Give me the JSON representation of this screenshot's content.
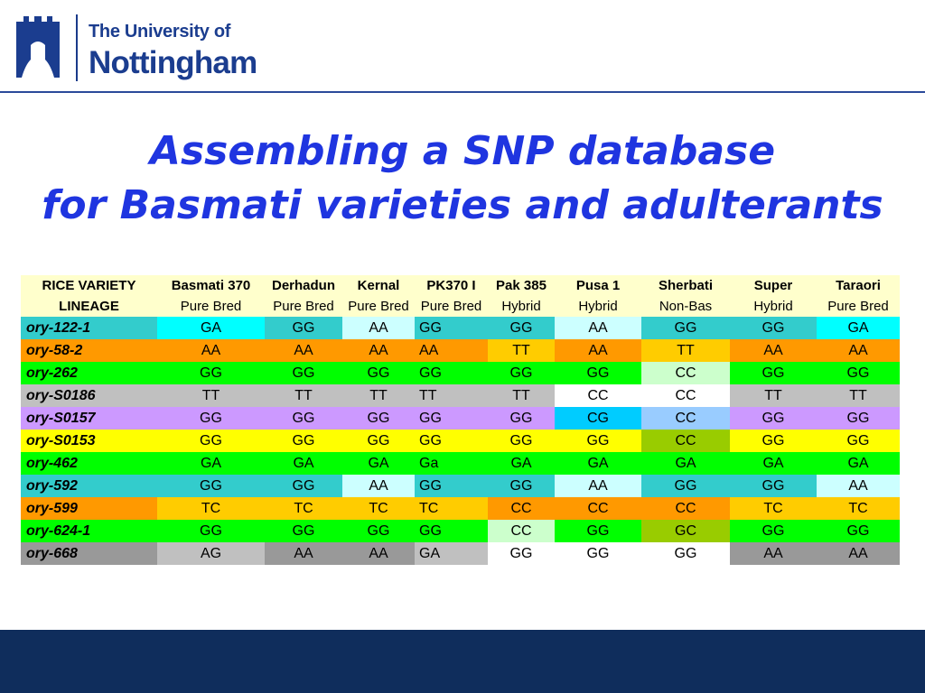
{
  "logo": {
    "line1": "The University of",
    "line2": "Nottingham"
  },
  "title": {
    "line1": "Assembling a SNP database",
    "line2": "for Basmati varieties and adulterants"
  },
  "table": {
    "header_variety_label": "RICE VARIETY",
    "header_lineage_label": "LINEAGE",
    "varieties": [
      "Basmati 370",
      "Derhadun",
      "Kernal",
      "PK370 I",
      "Pak 385",
      "Pusa 1",
      "Sherbati",
      "Super",
      "Taraori"
    ],
    "lineages": [
      "Pure Bred",
      "Pure Bred",
      "Pure Bred",
      "Pure Bred",
      "Hybrid",
      "Hybrid",
      "Non-Bas",
      "Hybrid",
      "Pure Bred"
    ],
    "rows": [
      {
        "label": "ory-122-1",
        "label_color": "#33cccc",
        "cells": [
          "GA",
          "GG",
          "AA",
          "GG",
          "GG",
          "AA",
          "GG",
          "GG",
          "GA"
        ],
        "colors": [
          "#00ffff",
          "#33cccc",
          "#ccffff",
          "#33cccc",
          "#33cccc",
          "#ccffff",
          "#33cccc",
          "#33cccc",
          "#00ffff"
        ]
      },
      {
        "label": "ory-58-2",
        "label_color": "#ff9900",
        "cells": [
          "AA",
          "AA",
          "AA",
          "AA",
          "TT",
          "AA",
          "TT",
          "AA",
          "AA"
        ],
        "colors": [
          "#ff9900",
          "#ff9900",
          "#ff9900",
          "#ff9900",
          "#ffcc00",
          "#ff9900",
          "#ffcc00",
          "#ff9900",
          "#ff9900"
        ]
      },
      {
        "label": "ory-262",
        "label_color": "#00ff00",
        "cells": [
          "GG",
          "GG",
          "GG",
          "GG",
          "GG",
          "GG",
          "CC",
          "GG",
          "GG"
        ],
        "colors": [
          "#00ff00",
          "#00ff00",
          "#00ff00",
          "#00ff00",
          "#00ff00",
          "#00ff00",
          "#ccffcc",
          "#00ff00",
          "#00ff00"
        ]
      },
      {
        "label": "ory-S0186",
        "label_color": "#c0c0c0",
        "cells": [
          "TT",
          "TT",
          "TT",
          "TT",
          "TT",
          "CC",
          "CC",
          "TT",
          "TT"
        ],
        "colors": [
          "#c0c0c0",
          "#c0c0c0",
          "#c0c0c0",
          "#c0c0c0",
          "#c0c0c0",
          "#ffffff",
          "#ffffff",
          "#c0c0c0",
          "#c0c0c0"
        ]
      },
      {
        "label": "ory-S0157",
        "label_color": "#cc99ff",
        "cells": [
          "GG",
          "GG",
          "GG",
          "GG",
          "GG",
          "CG",
          "CC",
          "GG",
          "GG"
        ],
        "colors": [
          "#cc99ff",
          "#cc99ff",
          "#cc99ff",
          "#cc99ff",
          "#cc99ff",
          "#00ccff",
          "#99ccff",
          "#cc99ff",
          "#cc99ff"
        ]
      },
      {
        "label": "ory-S0153",
        "label_color": "#ffff00",
        "cells": [
          "GG",
          "GG",
          "GG",
          "GG",
          "GG",
          "GG",
          "CC",
          "GG",
          "GG"
        ],
        "colors": [
          "#ffff00",
          "#ffff00",
          "#ffff00",
          "#ffff00",
          "#ffff00",
          "#ffff00",
          "#99cc00",
          "#ffff00",
          "#ffff00"
        ]
      },
      {
        "label": "ory-462",
        "label_color": "#00ff00",
        "cells": [
          "GA",
          "GA",
          "GA",
          "Ga",
          "GA",
          "GA",
          "GA",
          "GA",
          "GA"
        ],
        "colors": [
          "#00ff00",
          "#00ff00",
          "#00ff00",
          "#00ff00",
          "#00ff00",
          "#00ff00",
          "#00ff00",
          "#00ff00",
          "#00ff00"
        ]
      },
      {
        "label": "ory-592",
        "label_color": "#33cccc",
        "cells": [
          "GG",
          "GG",
          "AA",
          "GG",
          "GG",
          "AA",
          "GG",
          "GG",
          "AA"
        ],
        "colors": [
          "#33cccc",
          "#33cccc",
          "#ccffff",
          "#33cccc",
          "#33cccc",
          "#ccffff",
          "#33cccc",
          "#33cccc",
          "#ccffff"
        ]
      },
      {
        "label": "ory-599",
        "label_color": "#ff9900",
        "cells": [
          "TC",
          "TC",
          "TC",
          "TC",
          "CC",
          "CC",
          "CC",
          "TC",
          "TC"
        ],
        "colors": [
          "#ffcc00",
          "#ffcc00",
          "#ffcc00",
          "#ffcc00",
          "#ff9900",
          "#ff9900",
          "#ff9900",
          "#ffcc00",
          "#ffcc00"
        ]
      },
      {
        "label": "ory-624-1",
        "label_color": "#00ff00",
        "cells": [
          "GG",
          "GG",
          "GG",
          "GG",
          "CC",
          "GG",
          "GC",
          "GG",
          "GG"
        ],
        "colors": [
          "#00ff00",
          "#00ff00",
          "#00ff00",
          "#00ff00",
          "#ccffcc",
          "#00ff00",
          "#99cc00",
          "#00ff00",
          "#00ff00"
        ]
      },
      {
        "label": "ory-668",
        "label_color": "#999999",
        "cells": [
          "AG",
          "AA",
          "AA",
          "GA",
          "GG",
          "GG",
          "GG",
          "AA",
          "AA"
        ],
        "colors": [
          "#c0c0c0",
          "#999999",
          "#999999",
          "#c0c0c0",
          "#ffffff",
          "#ffffff",
          "#ffffff",
          "#999999",
          "#999999"
        ]
      }
    ]
  },
  "colors": {
    "title": "#1f35e0",
    "brand_navy": "#1b3d8f",
    "footer": "#0f2d5c",
    "header_bg": "#ffffcc"
  }
}
